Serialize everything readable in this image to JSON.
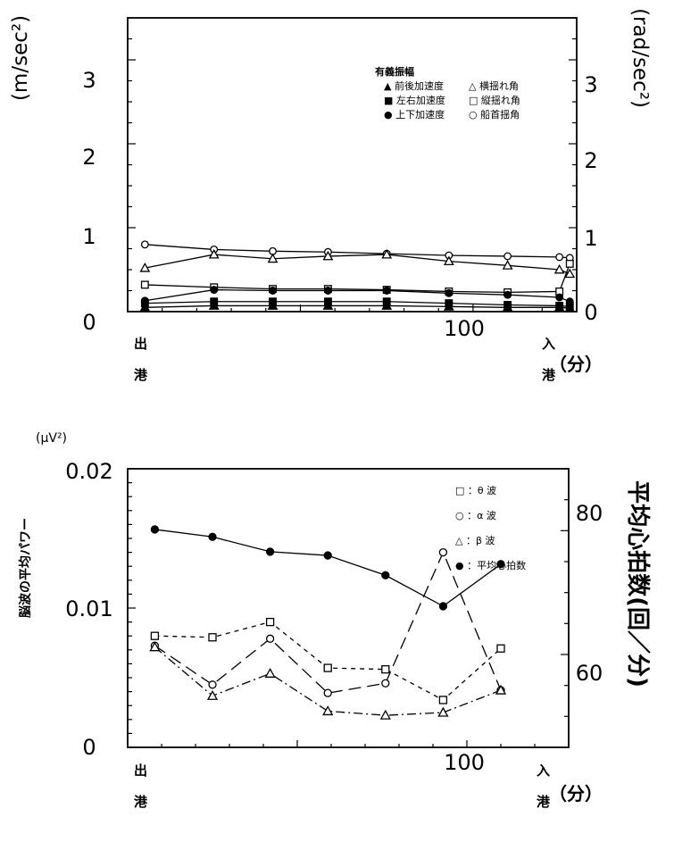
{
  "chart_data": [
    {
      "type": "line",
      "y_left_unit": "(m/sec²)",
      "y_right_unit": "(rad/sec²)",
      "xlim": [
        0,
        130
      ],
      "ylim": [
        0,
        3.5
      ],
      "y2lim": [
        0,
        3.5
      ],
      "y_ticks": [
        0,
        1,
        2,
        3
      ],
      "y_tick_labels": [
        "0",
        "1",
        "2",
        "3"
      ],
      "y2_tick_labels": [
        "0",
        "1",
        "2",
        "3"
      ],
      "x_ticks": [
        100
      ],
      "x_tick_labels": [
        "100"
      ],
      "x_start_label": "出\n港",
      "x_end_label": "入\n港",
      "x_unit": "（分）",
      "legend_title": "有義振幅",
      "legend_items": [
        "▲ 前後加速度",
        "△ 横揺れ角",
        "■ 左右加速度",
        "□ 縦揺れ角",
        "● 上下加速度",
        "○ 船首揺角"
      ],
      "x": [
        5,
        25,
        42,
        58,
        75,
        93,
        110,
        125,
        128
      ],
      "series": [
        {
          "name": "船首揺角",
          "marker": "circle-open",
          "values": [
            0.8,
            0.74,
            0.72,
            0.71,
            0.69,
            0.67,
            0.66,
            0.65,
            0.64
          ]
        },
        {
          "name": "横揺れ角",
          "marker": "triangle-open",
          "values": [
            0.52,
            0.68,
            0.63,
            0.66,
            0.68,
            0.6,
            0.55,
            0.5,
            0.45
          ]
        },
        {
          "name": "縦揺れ角",
          "marker": "square-open",
          "values": [
            0.32,
            0.29,
            0.27,
            0.27,
            0.26,
            0.24,
            0.23,
            0.24,
            0.57
          ]
        },
        {
          "name": "上下加速度",
          "marker": "circle-filled",
          "values": [
            0.13,
            0.26,
            0.25,
            0.25,
            0.25,
            0.22,
            0.2,
            0.17,
            0.12
          ]
        },
        {
          "name": "左右加速度",
          "marker": "square-filled",
          "values": [
            0.1,
            0.12,
            0.12,
            0.12,
            0.12,
            0.1,
            0.08,
            0.07,
            0.06
          ]
        },
        {
          "name": "前後加速度",
          "marker": "triangle-filled",
          "values": [
            0.05,
            0.07,
            0.07,
            0.07,
            0.07,
            0.06,
            0.05,
            0.05,
            0.04
          ]
        }
      ]
    },
    {
      "type": "line",
      "y_left_unit": "(μV²)",
      "y_left_label": "脳波の平均パワー",
      "y_right_label": "平均心拍数(回／分)",
      "xlim": [
        0,
        130
      ],
      "ylim": [
        0,
        0.02
      ],
      "y2lim": [
        45,
        90
      ],
      "y_ticks": [
        0,
        0.01,
        0.02
      ],
      "y_tick_labels": [
        "0",
        "0.01",
        "0.02"
      ],
      "y2_ticks": [
        60,
        80
      ],
      "y2_tick_labels": [
        "60",
        "80"
      ],
      "x_ticks": [
        100
      ],
      "x_tick_labels": [
        "100"
      ],
      "x_start_label": "出\n港",
      "x_end_label": "入\n港",
      "x_unit": "（分）",
      "legend_items": [
        "□ ：θ 波",
        "○ ：α 波",
        "△ ：β 波",
        "● ：平均心拍数"
      ],
      "x": [
        8,
        25,
        42,
        59,
        76,
        93,
        110
      ],
      "series": [
        {
          "name": "θ 波",
          "axis": "left",
          "marker": "square-open",
          "dash": "short",
          "values": [
            0.008,
            0.0079,
            0.009,
            0.0057,
            0.0056,
            0.0034,
            0.0071
          ]
        },
        {
          "name": "α 波",
          "axis": "left",
          "marker": "circle-open",
          "dash": "long",
          "values": [
            0.0073,
            0.0045,
            0.0078,
            0.0039,
            0.0046,
            0.014,
            0.0041
          ]
        },
        {
          "name": "β 波",
          "axis": "left",
          "marker": "triangle-open",
          "dash": "dashdot",
          "values": [
            0.0072,
            0.0037,
            0.0053,
            0.0026,
            0.0023,
            0.0025,
            0.0041
          ]
        },
        {
          "name": "平均心拍数",
          "axis": "right",
          "marker": "circle-filled",
          "dash": "solid",
          "values": [
            80.2,
            79.0,
            76.6,
            76.0,
            72.8,
            67.8,
            74.6
          ]
        }
      ]
    }
  ]
}
